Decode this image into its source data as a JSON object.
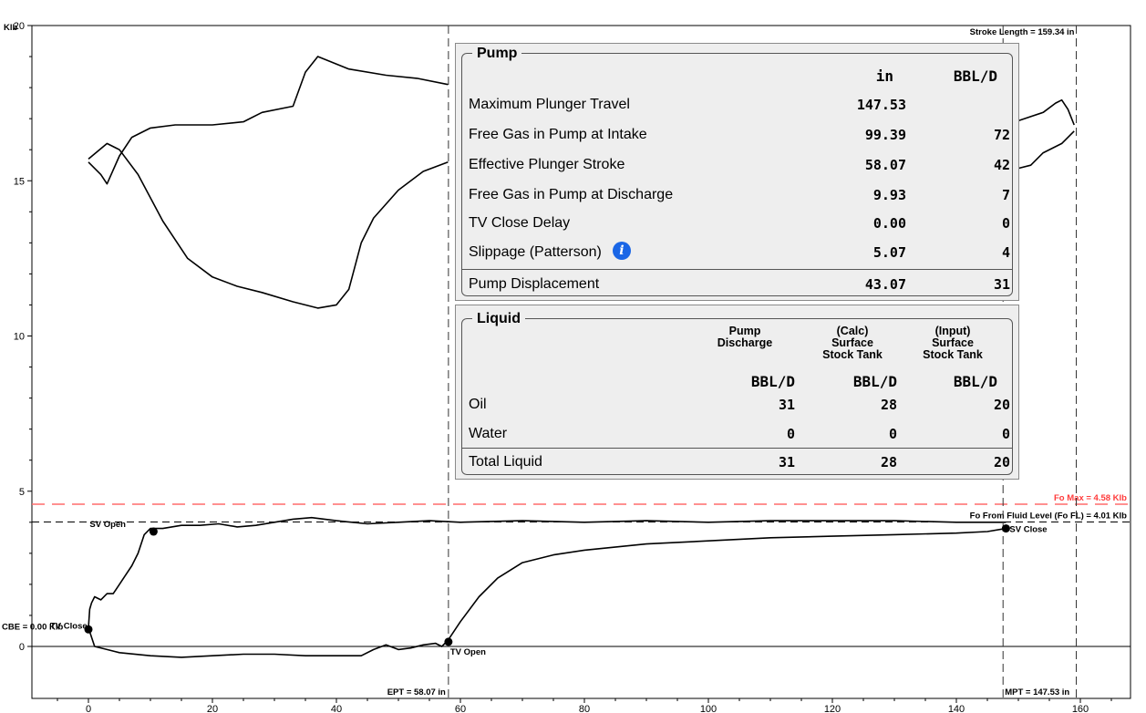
{
  "chart_data": {
    "type": "line",
    "y_unit_label": "Klb",
    "xlim": [
      -5,
      162
    ],
    "ylim": [
      -1.2,
      20
    ],
    "x_ticks": [
      0,
      20,
      40,
      60,
      80,
      100,
      120,
      140,
      160
    ],
    "y_ticks": [
      0,
      5,
      10,
      15,
      20
    ],
    "x_tick_labels": [
      "0",
      "20",
      "40",
      "60",
      "80",
      "100",
      "120",
      "140",
      "160"
    ],
    "y_tick_labels": [
      "0",
      "5",
      "10",
      "15",
      "20"
    ],
    "series": [
      {
        "color": "#000000",
        "points": [
          [
            0,
            15.6
          ],
          [
            2,
            15.2
          ],
          [
            3,
            14.9
          ],
          [
            5,
            15.8
          ],
          [
            7,
            16.4
          ],
          [
            10,
            16.7
          ],
          [
            14,
            16.8
          ],
          [
            20,
            16.8
          ],
          [
            25,
            16.9
          ],
          [
            28,
            17.2
          ],
          [
            33,
            17.4
          ],
          [
            35,
            18.5
          ],
          [
            37,
            19.0
          ],
          [
            42,
            18.6
          ],
          [
            48,
            18.4
          ],
          [
            53,
            18.3
          ],
          [
            58,
            18.1
          ]
        ]
      },
      {
        "color": "#000000",
        "points": [
          [
            0,
            15.7
          ],
          [
            3,
            16.2
          ],
          [
            5,
            16.0
          ],
          [
            8,
            15.2
          ],
          [
            12,
            13.7
          ],
          [
            16,
            12.5
          ],
          [
            20,
            11.9
          ],
          [
            24,
            11.6
          ],
          [
            28,
            11.4
          ],
          [
            33,
            11.1
          ],
          [
            37,
            10.9
          ],
          [
            40,
            11.0
          ],
          [
            42,
            11.5
          ],
          [
            44,
            13.0
          ],
          [
            46,
            13.8
          ],
          [
            50,
            14.7
          ],
          [
            54,
            15.3
          ],
          [
            58,
            15.6
          ]
        ]
      },
      {
        "color": "#000000",
        "points": [
          [
            148,
            16.8
          ],
          [
            151,
            17.0
          ],
          [
            154,
            17.2
          ],
          [
            156,
            17.5
          ],
          [
            157,
            17.6
          ],
          [
            158,
            17.3
          ],
          [
            159,
            16.8
          ]
        ]
      },
      {
        "color": "#000000",
        "points": [
          [
            148,
            15.6
          ],
          [
            150,
            15.4
          ],
          [
            152,
            15.5
          ],
          [
            154,
            15.9
          ],
          [
            157,
            16.2
          ],
          [
            159,
            16.6
          ]
        ]
      },
      {
        "color": "#000000",
        "points": [
          [
            0,
            0.6
          ],
          [
            0.2,
            1.2
          ],
          [
            0.5,
            1.4
          ],
          [
            1,
            1.6
          ],
          [
            2,
            1.5
          ],
          [
            3,
            1.7
          ],
          [
            4,
            1.7
          ],
          [
            5,
            2.0
          ],
          [
            6,
            2.3
          ],
          [
            7,
            2.6
          ],
          [
            8,
            3.0
          ],
          [
            9,
            3.6
          ],
          [
            10,
            3.8
          ],
          [
            12,
            3.8
          ],
          [
            15,
            3.9
          ],
          [
            18,
            3.9
          ],
          [
            21,
            3.95
          ],
          [
            24,
            3.85
          ],
          [
            27,
            3.9
          ],
          [
            30,
            4.0
          ],
          [
            33,
            4.1
          ],
          [
            36,
            4.15
          ],
          [
            40,
            4.05
          ],
          [
            45,
            3.95
          ],
          [
            50,
            4.0
          ],
          [
            55,
            4.05
          ],
          [
            60,
            4.0
          ],
          [
            70,
            4.05
          ],
          [
            80,
            4.0
          ],
          [
            90,
            4.05
          ],
          [
            100,
            4.0
          ],
          [
            110,
            4.05
          ],
          [
            120,
            4.05
          ],
          [
            130,
            4.05
          ],
          [
            140,
            4.0
          ],
          [
            145,
            4.0
          ],
          [
            148,
            4.0
          ]
        ]
      },
      {
        "color": "#000000",
        "points": [
          [
            0,
            0.6
          ],
          [
            1,
            0
          ],
          [
            3,
            -0.1
          ],
          [
            5,
            -0.2
          ],
          [
            10,
            -0.3
          ],
          [
            15,
            -0.35
          ],
          [
            20,
            -0.3
          ],
          [
            25,
            -0.25
          ],
          [
            30,
            -0.25
          ],
          [
            35,
            -0.3
          ],
          [
            40,
            -0.3
          ],
          [
            44,
            -0.3
          ],
          [
            46,
            -0.1
          ],
          [
            48,
            0.05
          ],
          [
            50,
            -0.1
          ],
          [
            52,
            -0.05
          ],
          [
            54,
            0.05
          ],
          [
            56,
            0.1
          ],
          [
            57,
            0.0
          ],
          [
            58,
            0.2
          ],
          [
            60,
            0.8
          ],
          [
            63,
            1.6
          ],
          [
            66,
            2.2
          ],
          [
            70,
            2.7
          ],
          [
            75,
            2.95
          ],
          [
            80,
            3.1
          ],
          [
            90,
            3.3
          ],
          [
            100,
            3.4
          ],
          [
            110,
            3.5
          ],
          [
            120,
            3.55
          ],
          [
            130,
            3.6
          ],
          [
            140,
            3.65
          ],
          [
            145,
            3.7
          ],
          [
            148,
            3.8
          ]
        ]
      }
    ],
    "reference_lines": [
      {
        "label": "Fo Max = 4.58 Klb",
        "y": 4.58,
        "color": "#ff6b6b"
      },
      {
        "label": "Fo From Fluid Level (Fo FL) = 4.01 Klb",
        "y": 4.01,
        "color": "#000000"
      }
    ],
    "vertical_lines": [
      {
        "label": "EPT = 58.07 in",
        "x": 58.07
      },
      {
        "label": "MPT = 147.53 in",
        "x": 147.53
      },
      {
        "label": "Stroke Length = 159.34 in",
        "x": 159.34
      }
    ],
    "markers": [
      {
        "label": "SV Open",
        "x": 10.5,
        "y": 3.7
      },
      {
        "label": "SV Close",
        "x": 148,
        "y": 3.8
      },
      {
        "label": "TV Open",
        "x": 58.07,
        "y": 0.15
      },
      {
        "label": "CBE = 0.00 Klb",
        "x": 0,
        "y": 0.55
      },
      {
        "label": "TV Close",
        "x": 0,
        "y": 0.55
      }
    ]
  },
  "pump": {
    "title": "Pump",
    "col_in": "in",
    "col_bbl": "BBL/D",
    "rows": [
      {
        "label": "Maximum Plunger Travel",
        "in": "147.53",
        "bbl": ""
      },
      {
        "label": "Free Gas in Pump at Intake",
        "in": "99.39",
        "bbl": "72"
      },
      {
        "label": "Effective Plunger Stroke",
        "in": "58.07",
        "bbl": "42"
      },
      {
        "label": "Free Gas in Pump at Discharge",
        "in": "9.93",
        "bbl": "7"
      },
      {
        "label": "TV Close Delay",
        "in": "0.00",
        "bbl": "0"
      },
      {
        "label": "Slippage (Patterson)",
        "in": "5.07",
        "bbl": "4"
      }
    ],
    "total": {
      "label": "Pump Displacement",
      "in": "43.07",
      "bbl": "31"
    }
  },
  "liquid": {
    "title": "Liquid",
    "col1": "Pump\nDischarge",
    "col2": "(Calc)\nSurface\nStock Tank",
    "col3": "(Input)\nSurface\nStock Tank",
    "unit": "BBL/D",
    "rows": [
      {
        "label": "Oil",
        "v1": "31",
        "v2": "28",
        "v3": "20"
      },
      {
        "label": "Water",
        "v1": "0",
        "v2": "0",
        "v3": "0"
      }
    ],
    "total": {
      "label": "Total Liquid",
      "v1": "31",
      "v2": "28",
      "v3": "20"
    }
  },
  "icons": {
    "info": "i"
  }
}
